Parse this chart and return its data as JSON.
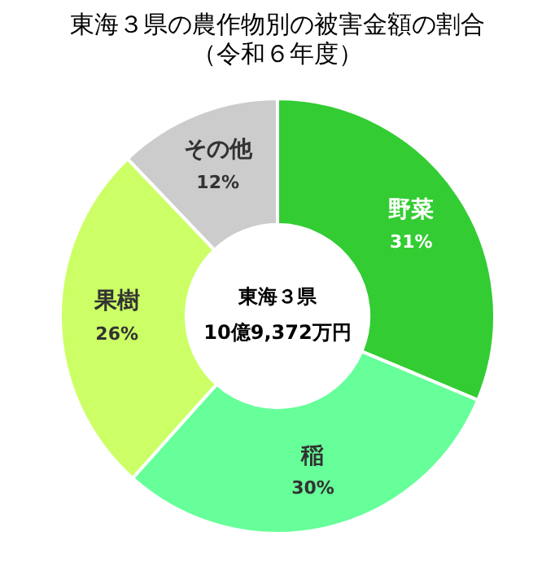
{
  "chart_data": {
    "type": "donut",
    "title": "東海３県の農作物別の被害金額の割合",
    "subtitle": "（令和６年度）",
    "categories": [
      "野菜",
      "稲",
      "果樹",
      "その他"
    ],
    "values": [
      31,
      30,
      26,
      12
    ],
    "colors": [
      "#33cc33",
      "#66ff99",
      "#ccff66",
      "#cccccc"
    ],
    "value_labels": [
      "31%",
      "30%",
      "26%",
      "12%"
    ],
    "annotations": [
      "東海３県",
      "10億9,372万円"
    ],
    "legend": false
  }
}
